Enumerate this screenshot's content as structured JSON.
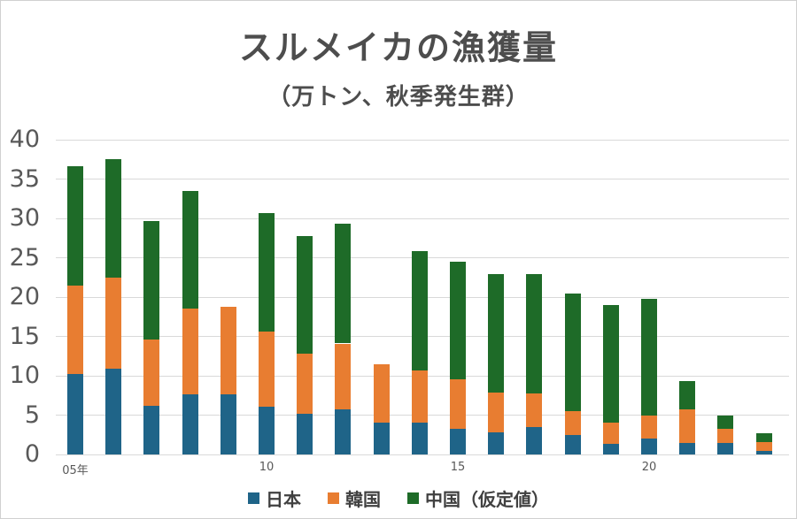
{
  "frame": {
    "background": "#ffffff",
    "border_color": "#d0d0d0",
    "title_color": "#4d4d4d",
    "axis_label_color": "#595959",
    "gridline_color": "#d9d9d9",
    "legend_text_color": "#404040"
  },
  "chart_data": {
    "type": "bar",
    "stacked": true,
    "title": "スルメイカの漁獲量",
    "subtitle": "（万トン、秋季発生群）",
    "ylabel": "",
    "xlabel": "",
    "ylim": [
      0,
      40
    ],
    "y_ticks": [
      0,
      5,
      10,
      15,
      20,
      25,
      30,
      35,
      40
    ],
    "grid": "horizontal-only",
    "legend_position": "bottom",
    "categories": [
      "2005",
      "2006",
      "2007",
      "2008",
      "2009",
      "2010",
      "2011",
      "2012",
      "2013",
      "2014",
      "2015",
      "2016",
      "2017",
      "2018",
      "2019",
      "2020",
      "2021",
      "2022",
      "2023"
    ],
    "x_tick_labels": [
      {
        "index": 0,
        "label": "05年"
      },
      {
        "index": 5,
        "label": "10"
      },
      {
        "index": 10,
        "label": "15"
      },
      {
        "index": 15,
        "label": "20"
      }
    ],
    "series": [
      {
        "name": "日本",
        "color": "#1F6488",
        "values": [
          10.2,
          10.9,
          6.2,
          7.6,
          7.6,
          6.1,
          5.2,
          5.7,
          4.1,
          4.0,
          3.3,
          2.8,
          3.5,
          2.5,
          1.4,
          2.0,
          1.5,
          1.5,
          0.5
        ]
      },
      {
        "name": "韓国",
        "color": "#E87D31",
        "values": [
          11.3,
          11.6,
          8.4,
          10.9,
          11.2,
          9.5,
          7.6,
          8.4,
          7.4,
          6.7,
          6.3,
          5.1,
          4.2,
          3.0,
          2.7,
          2.9,
          4.2,
          1.8,
          1.1
        ]
      },
      {
        "name": "中国（仮定値）",
        "color": "#1E6B28",
        "values": [
          15.1,
          15.0,
          15.1,
          15.0,
          0,
          15.1,
          15.0,
          15.2,
          0,
          15.1,
          14.9,
          15.0,
          15.2,
          14.9,
          14.9,
          14.9,
          3.6,
          1.6,
          1.1
        ]
      }
    ]
  }
}
